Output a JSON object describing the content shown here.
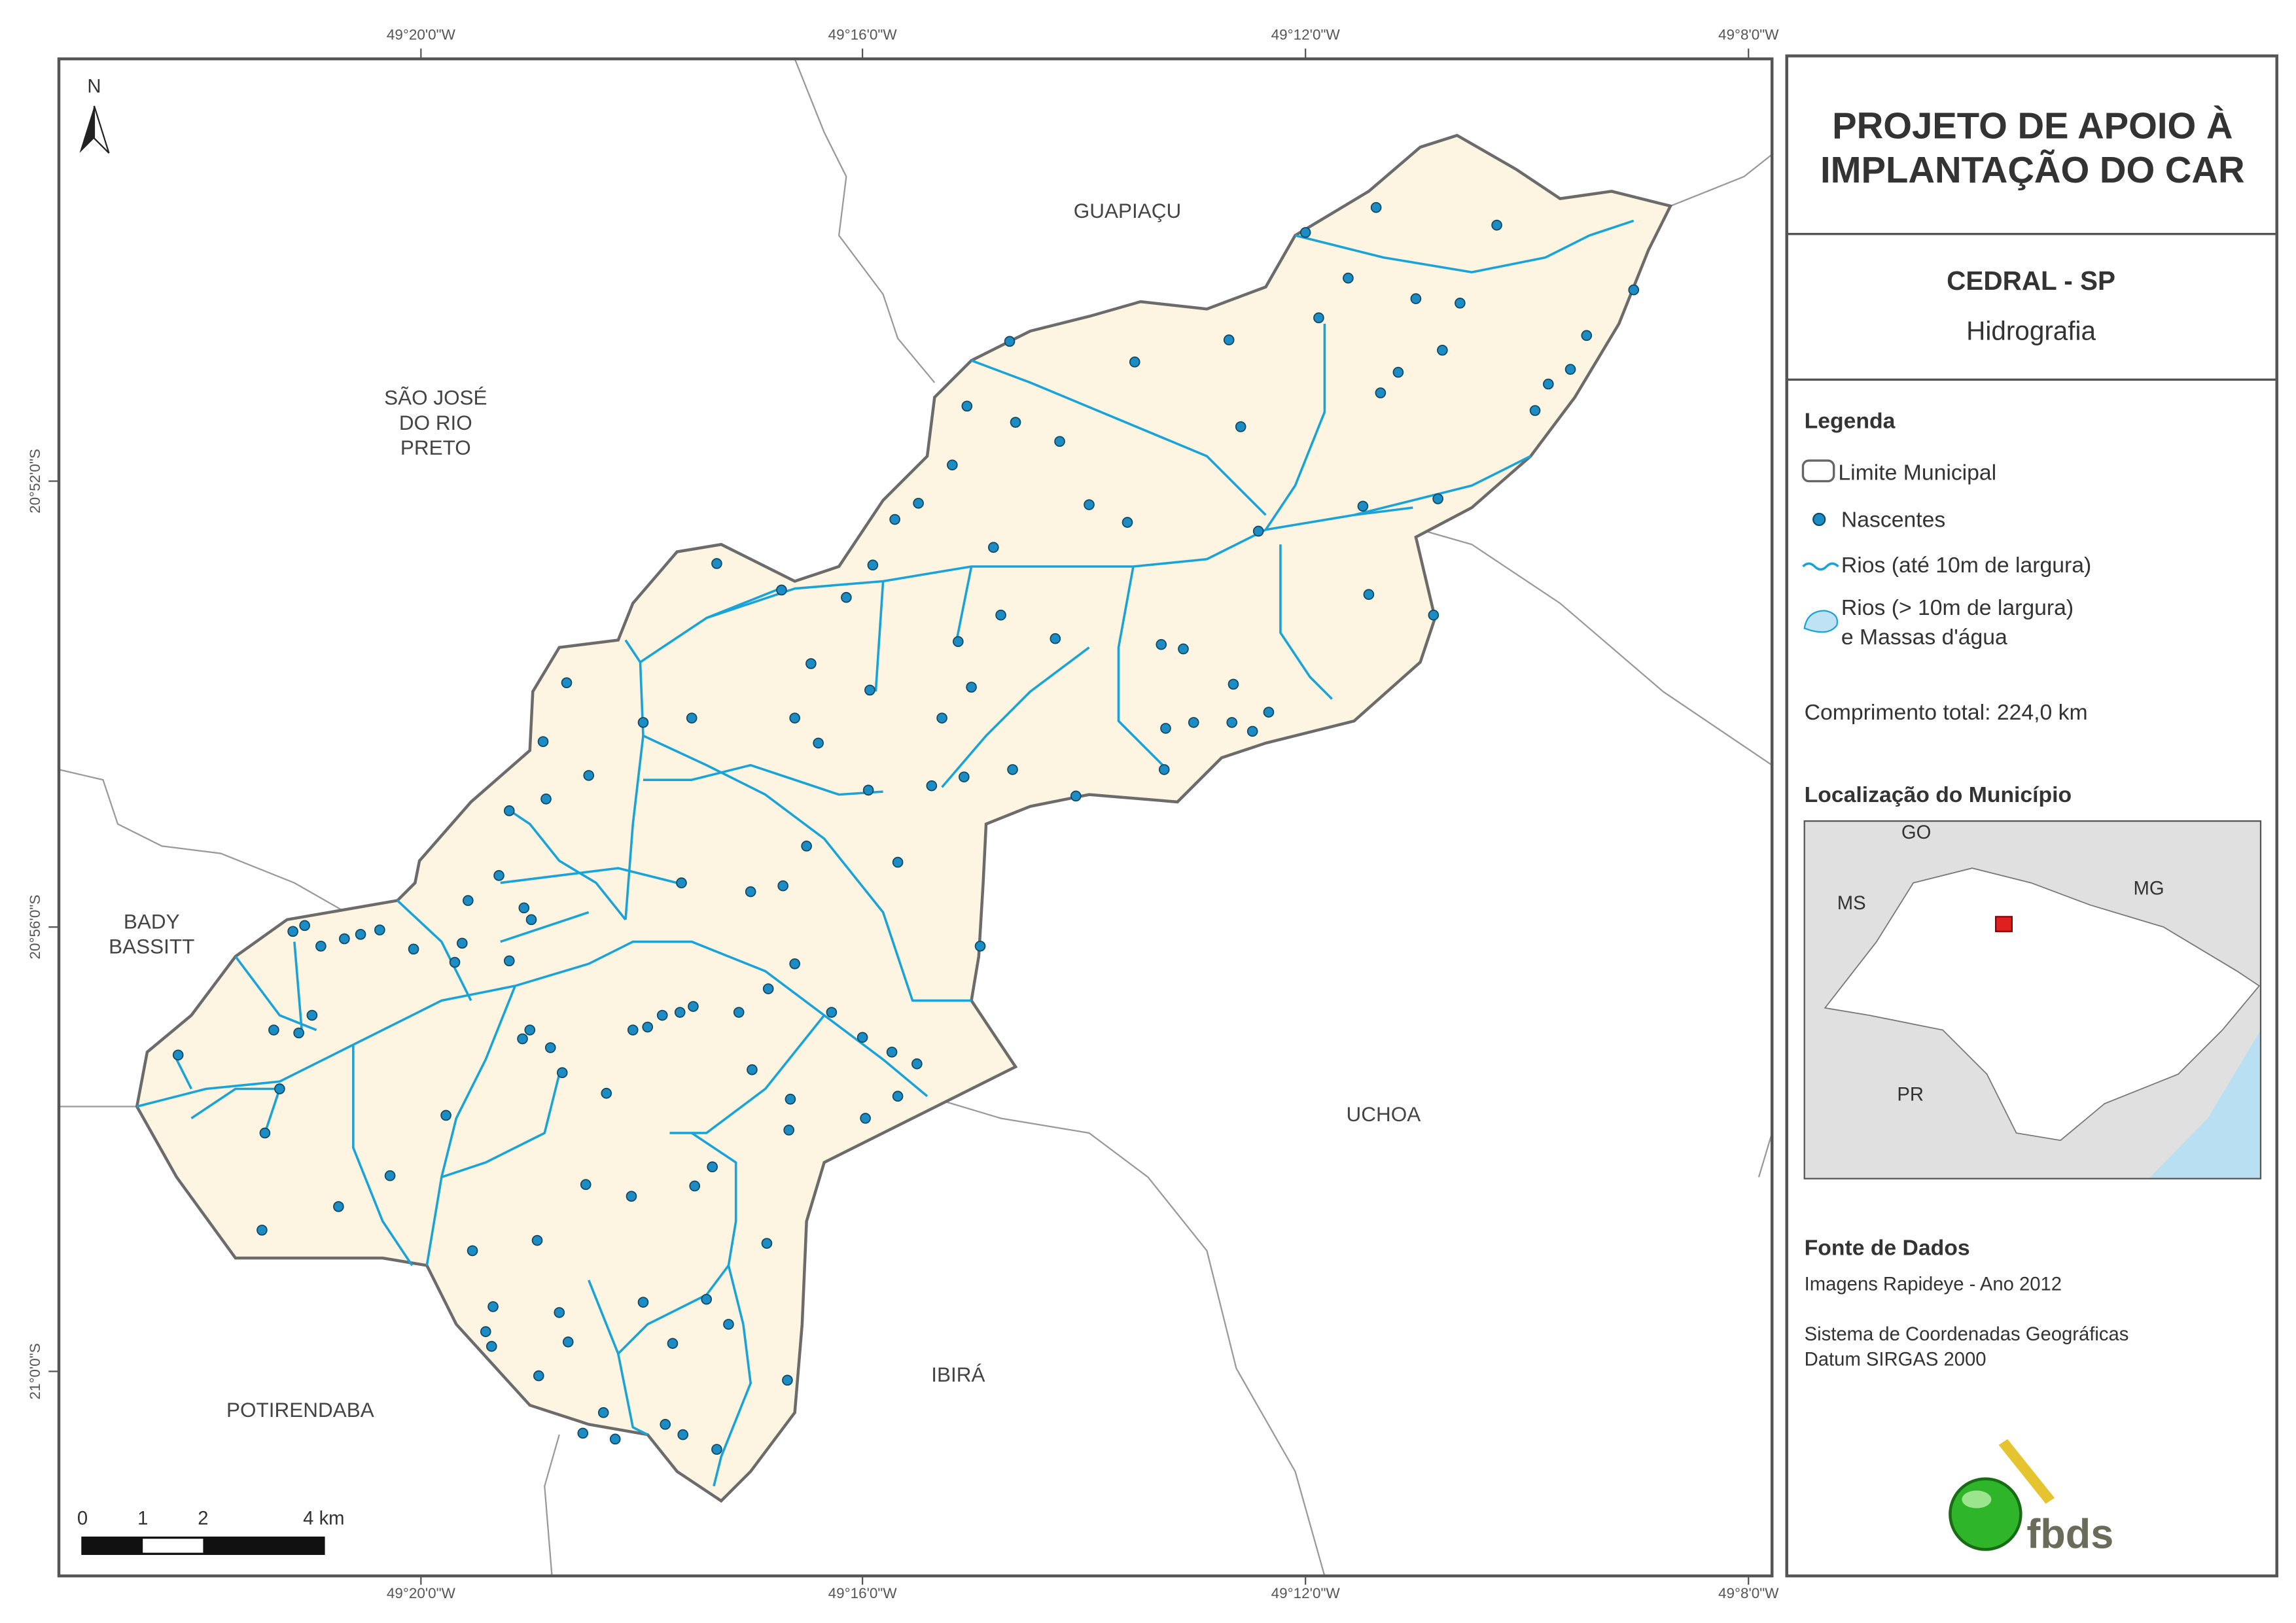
{
  "map": {
    "graticule": {
      "top": [
        "49°20'0\"W",
        "49°16'0\"W",
        "49°12'0\"W",
        "49°8'0\"W"
      ],
      "bottom": [
        "49°20'0\"W",
        "49°16'0\"W",
        "49°12'0\"W",
        "49°8'0\"W"
      ],
      "left": [
        "20°52'0\"S",
        "20°56'0\"S",
        "21°0'0\"S"
      ]
    },
    "north": "N",
    "places": [
      {
        "lines": [
          "GUAPIAÇU"
        ]
      },
      {
        "lines": [
          "SÃO JOSÉ",
          "DO RIO",
          "PRETO"
        ]
      },
      {
        "lines": [
          "BADY",
          "BASSITT"
        ]
      },
      {
        "lines": [
          "UCHOA"
        ]
      },
      {
        "lines": [
          "IBIRÁ"
        ]
      },
      {
        "lines": [
          "POTIRENDABA"
        ]
      }
    ],
    "scale": {
      "labels": [
        "0",
        "1",
        "2",
        "4 km"
      ]
    }
  },
  "panel": {
    "title": [
      "PROJETO DE APOIO À",
      "IMPLANTAÇÃO DO CAR"
    ],
    "municipality": "CEDRAL - SP",
    "theme": "Hidrografia",
    "legend": {
      "heading": "Legenda",
      "items": [
        "Limite Municipal",
        "Nascentes",
        "Rios (até 10m de largura)"
      ],
      "water": [
        "Rios (> 10m de largura)",
        "e Massas d'água"
      ]
    },
    "total_length": "Comprimento total:  224,0 km",
    "location": {
      "heading": "Localização do Município",
      "states": [
        "GO",
        "MS",
        "MG",
        "PR"
      ]
    },
    "source": {
      "heading": "Fonte de Dados",
      "imagery": "Imagens Rapideye - Ano 2012",
      "crs": [
        "Sistema de Coordenadas Geográficas",
        "Datum SIRGAS 2000"
      ]
    },
    "logo": "fbds"
  }
}
